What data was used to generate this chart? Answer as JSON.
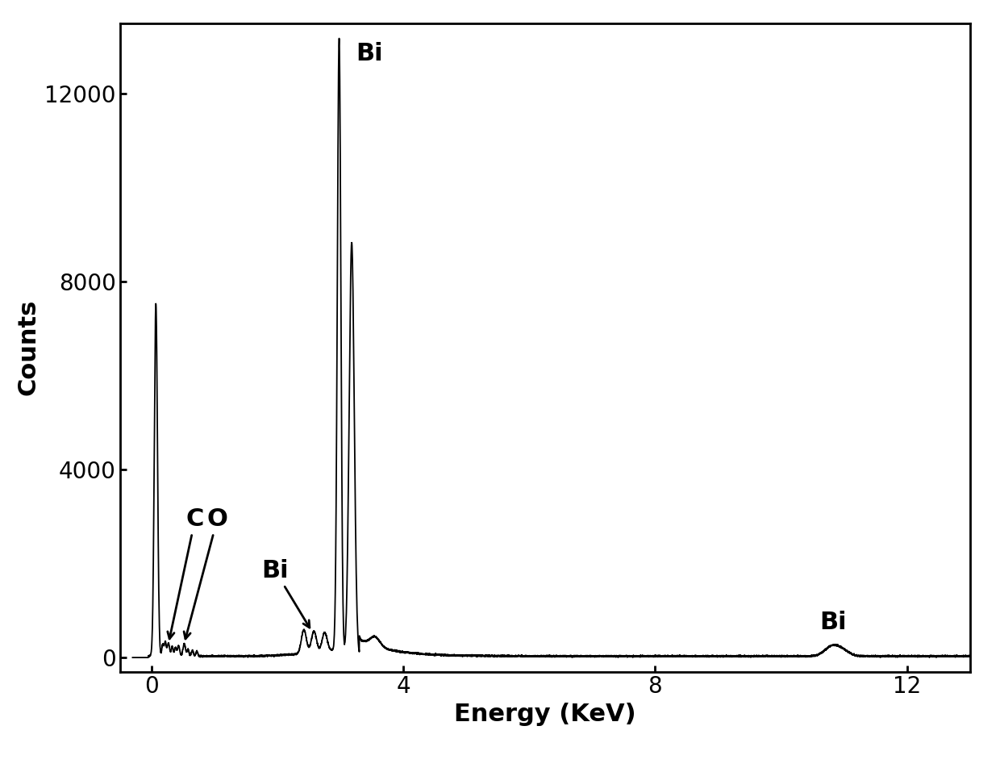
{
  "title": "",
  "xlabel": "Energy (KeV)",
  "ylabel": "Counts",
  "xlim": [
    -0.5,
    13.0
  ],
  "ylim": [
    -300,
    13500
  ],
  "yticks": [
    0,
    4000,
    8000,
    12000
  ],
  "xticks": [
    0,
    4,
    8,
    12
  ],
  "background_color": "#ffffff",
  "line_color": "#000000",
  "label_fontsize": 22,
  "tick_fontsize": 20
}
